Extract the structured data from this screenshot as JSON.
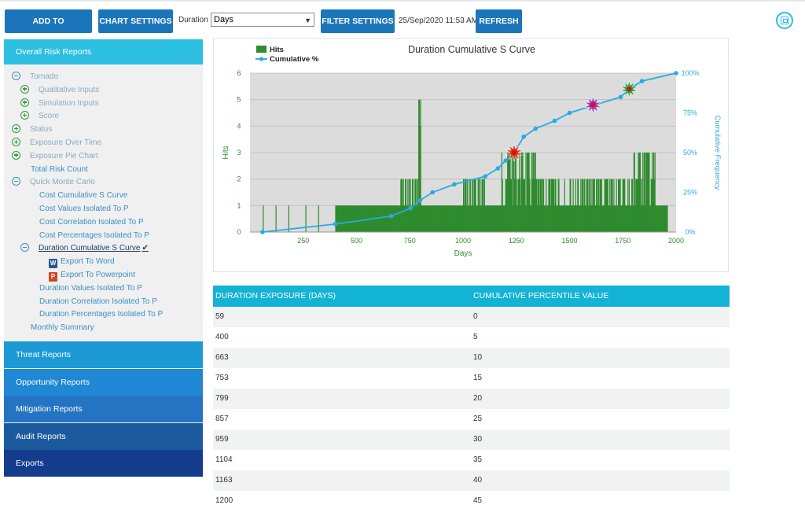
{
  "toolbar": {
    "add_to_dashboard": "ADD TO DASHBOARD",
    "chart_settings": "CHART SETTINGS",
    "duration_label": "Duration",
    "duration_selected": "Days",
    "filter_settings": "FILTER SETTINGS",
    "timestamp": "25/Sep/2020 11:53 AM",
    "refresh": "REFRESH",
    "save_icon": "save-icon"
  },
  "sidebar": {
    "header": "Overall Risk Reports",
    "tree": [
      {
        "label": "Tornado",
        "icon": "minus",
        "indent": 0,
        "style": "muted"
      },
      {
        "label": "Qualitative Inputs",
        "icon": "plus",
        "indent": 1,
        "style": "muted"
      },
      {
        "label": "Simulation Inputs",
        "icon": "plus",
        "indent": 1,
        "style": "muted"
      },
      {
        "label": "Score",
        "icon": "plus",
        "indent": 1,
        "style": "muted"
      },
      {
        "label": "Status",
        "icon": "plus",
        "indent": 0,
        "style": "muted"
      },
      {
        "label": "Exposure Over Time",
        "icon": "plus",
        "indent": 0,
        "style": "muted"
      },
      {
        "label": "Exposure Pie Chart",
        "icon": "plus",
        "indent": 0,
        "style": "muted"
      },
      {
        "label": "Total Risk Count",
        "icon": "none",
        "indent": 0,
        "style": "link"
      },
      {
        "label": "Quick Monte Carlo",
        "icon": "minus",
        "indent": 0,
        "style": "muted"
      },
      {
        "label": "Cost Cumulative S Curve",
        "icon": "none",
        "indent": 1,
        "style": "link"
      },
      {
        "label": "Cost Values Isolated To P",
        "icon": "none",
        "indent": 1,
        "style": "link"
      },
      {
        "label": "Cost Correlation Isolated To P",
        "icon": "none",
        "indent": 1,
        "style": "link"
      },
      {
        "label": "Cost Percentages Isolated To P",
        "icon": "none",
        "indent": 1,
        "style": "link"
      },
      {
        "label": "Duration Cumulative S Curve",
        "icon": "minus",
        "indent": 1,
        "style": "active"
      },
      {
        "label": "Export To Word",
        "icon": "word",
        "indent": 2,
        "style": "link"
      },
      {
        "label": "Export To Powerpoint",
        "icon": "ppt",
        "indent": 2,
        "style": "link"
      },
      {
        "label": "Duration Values Isolated To P",
        "icon": "none",
        "indent": 1,
        "style": "link"
      },
      {
        "label": "Duration Correlation Isolated To P",
        "icon": "none",
        "indent": 1,
        "style": "link"
      },
      {
        "label": "Duration Percentages Isolated To P",
        "icon": "none",
        "indent": 1,
        "style": "link"
      },
      {
        "label": "Monthly Summary",
        "icon": "none",
        "indent": 0,
        "style": "link"
      }
    ],
    "sections": [
      {
        "label": "Threat Reports",
        "color": "#1d9ad6"
      },
      {
        "label": "Opportunity Reports",
        "color": "#1f87d4"
      },
      {
        "label": "Mitigation Reports",
        "color": "#2574c4"
      },
      {
        "label": "Audit Reports",
        "color": "#1c5a9e"
      },
      {
        "label": "Exports",
        "color": "#133d8c"
      }
    ]
  },
  "chart_data": {
    "type": "bar",
    "title": "Duration Cumulative S Curve",
    "xlabel": "Days",
    "ylabel": "Hits",
    "y2label": "Cumulative Frequency",
    "xlim": [
      0,
      2000
    ],
    "ylim": [
      0,
      6
    ],
    "y2lim": [
      0,
      100
    ],
    "x_ticks": [
      250,
      500,
      750,
      1000,
      1250,
      1500,
      1750,
      2000
    ],
    "y_ticks": [
      0,
      1,
      2,
      3,
      4,
      5,
      6
    ],
    "y2_ticks": [
      "0%",
      "25%",
      "50%",
      "75%",
      "100%"
    ],
    "grid": true,
    "legend_position": "top-left",
    "legend": [
      "Hits",
      "Cumulative %"
    ],
    "colors": {
      "hits": "#2e8b2e",
      "cumulative": "#29abe2",
      "plot_bg": "#dcdcdc"
    },
    "hits_histogram": {
      "note_hidden": false,
      "bins": [
        [
          400,
          700,
          1
        ],
        [
          700,
          760,
          2
        ],
        [
          760,
          800,
          2
        ],
        [
          790,
          800,
          5
        ],
        [
          800,
          1000,
          1
        ],
        [
          1000,
          1100,
          2
        ],
        [
          1100,
          1180,
          1
        ],
        [
          1180,
          1260,
          3
        ],
        [
          1260,
          1340,
          3
        ],
        [
          1340,
          1400,
          2
        ],
        [
          1400,
          1500,
          2
        ],
        [
          1500,
          1600,
          2
        ],
        [
          1600,
          1700,
          2
        ],
        [
          1700,
          1800,
          2
        ],
        [
          1800,
          1900,
          3
        ],
        [
          1900,
          1960,
          1
        ]
      ]
    },
    "cumulative_series": {
      "name": "Cumulative %",
      "x": [
        59,
        400,
        663,
        753,
        799,
        857,
        959,
        1104,
        1163,
        1200,
        1240,
        1285,
        1340,
        1430,
        1500,
        1620,
        1740,
        1780,
        1840,
        2000
      ],
      "y": [
        0,
        5,
        10,
        15,
        20,
        25,
        30,
        35,
        40,
        45,
        50,
        60,
        65,
        70,
        75,
        80,
        85,
        90,
        95,
        100
      ]
    },
    "markers": [
      {
        "x": 1240,
        "y": 50,
        "color": "#e03a1e"
      },
      {
        "x": 1610,
        "y": 80,
        "color": "#9b3dbf"
      },
      {
        "x": 1780,
        "y": 90,
        "color": "#2ea84a"
      }
    ]
  },
  "table": {
    "headers": [
      "DURATION EXPOSURE (DAYS)",
      "CUMULATIVE PERCENTILE VALUE"
    ],
    "rows": [
      [
        "59",
        "0"
      ],
      [
        "400",
        "5"
      ],
      [
        "663",
        "10"
      ],
      [
        "753",
        "15"
      ],
      [
        "799",
        "20"
      ],
      [
        "857",
        "25"
      ],
      [
        "959",
        "30"
      ],
      [
        "1104",
        "35"
      ],
      [
        "1163",
        "40"
      ],
      [
        "1200",
        "45"
      ]
    ]
  }
}
